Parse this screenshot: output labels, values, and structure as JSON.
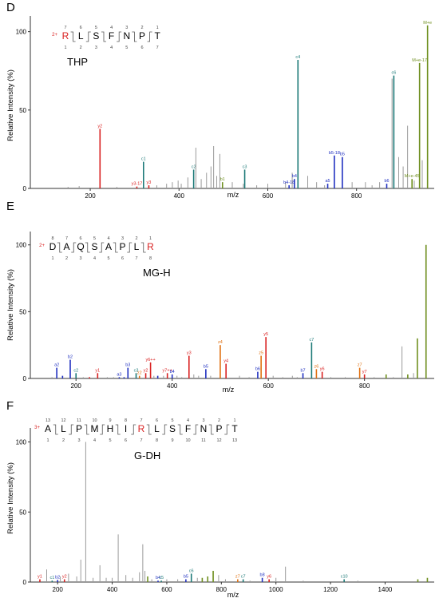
{
  "colors": {
    "gray": "#9a9a9a",
    "red": "#d92020",
    "teal": "#1d7a78",
    "blue": "#2030c0",
    "olive": "#6f8f1f",
    "orange": "#e07010",
    "axis": "#333333"
  },
  "panels": [
    {
      "letter": "D",
      "charge": "2+",
      "residues": [
        "R",
        "L",
        "S",
        "F",
        "N",
        "P",
        "T"
      ],
      "residue_colors": [
        "red",
        "black",
        "black",
        "black",
        "black",
        "black",
        "black"
      ],
      "top_numbers": [
        "7",
        "6",
        "5",
        "4",
        "3",
        "2",
        "1"
      ],
      "bottom_numbers": [
        "1",
        "2",
        "3",
        "4",
        "5",
        "6",
        "7"
      ],
      "modification": "THP",
      "ylabel": "Relative Intensity (%)",
      "xlabel": "m/z"
    },
    {
      "letter": "E",
      "charge": "2+",
      "residues": [
        "D",
        "A",
        "Q",
        "S",
        "A",
        "P",
        "L",
        "R"
      ],
      "residue_colors": [
        "black",
        "black",
        "black",
        "black",
        "black",
        "black",
        "black",
        "red"
      ],
      "top_numbers": [
        "8",
        "7",
        "6",
        "5",
        "4",
        "3",
        "2",
        "1"
      ],
      "bottom_numbers": [
        "1",
        "2",
        "3",
        "4",
        "5",
        "6",
        "7",
        "8"
      ],
      "modification": "MG-H",
      "ylabel": "Relative Intensity (%)",
      "xlabel": "m/z"
    },
    {
      "letter": "F",
      "charge": "3+",
      "residues": [
        "A",
        "L",
        "P",
        "M",
        "H",
        "I",
        "R",
        "L",
        "S",
        "F",
        "N",
        "P",
        "T"
      ],
      "residue_colors": [
        "black",
        "black",
        "black",
        "black",
        "black",
        "black",
        "red",
        "black",
        "black",
        "black",
        "black",
        "black",
        "black"
      ],
      "top_numbers": [
        "13",
        "12",
        "11",
        "10",
        "9",
        "8",
        "7",
        "6",
        "5",
        "4",
        "3",
        "2",
        "1"
      ],
      "bottom_numbers": [
        "1",
        "2",
        "3",
        "4",
        "5",
        "6",
        "7",
        "8",
        "9",
        "10",
        "11",
        "12",
        "13"
      ],
      "modification": "G-DH",
      "ylabel": "Relative Intensity (%)",
      "xlabel": "m/z"
    }
  ],
  "chart_data": [
    {
      "type": "bar",
      "xlabel": "m/z",
      "ylabel": "Relative Intensity (%)",
      "xlim": [
        65,
        975
      ],
      "ylim": [
        0,
        110
      ],
      "xticks": [
        200,
        400,
        600,
        800
      ],
      "yticks": [
        0,
        50,
        100
      ],
      "peaks": [
        {
          "mz": 150,
          "int": 1,
          "c": "gray"
        },
        {
          "mz": 175,
          "int": 1.5,
          "c": "gray"
        },
        {
          "mz": 222,
          "int": 38,
          "c": "red",
          "label": "y2"
        },
        {
          "mz": 260,
          "int": 1,
          "c": "gray"
        },
        {
          "mz": 305,
          "int": 1.2,
          "c": "red",
          "label": "y3-17"
        },
        {
          "mz": 320,
          "int": 17,
          "c": "teal",
          "label": "c1"
        },
        {
          "mz": 332,
          "int": 2,
          "c": "red",
          "label": "y3"
        },
        {
          "mz": 350,
          "int": 2,
          "c": "gray"
        },
        {
          "mz": 372,
          "int": 3,
          "c": "gray"
        },
        {
          "mz": 385,
          "int": 4,
          "c": "gray"
        },
        {
          "mz": 398,
          "int": 5,
          "c": "gray"
        },
        {
          "mz": 405,
          "int": 3,
          "c": "gray"
        },
        {
          "mz": 420,
          "int": 7,
          "c": "gray"
        },
        {
          "mz": 433,
          "int": 12,
          "c": "teal",
          "label": "c2"
        },
        {
          "mz": 438,
          "int": 26,
          "c": "gray"
        },
        {
          "mz": 450,
          "int": 6,
          "c": "gray"
        },
        {
          "mz": 462,
          "int": 10,
          "c": "gray"
        },
        {
          "mz": 472,
          "int": 14,
          "c": "gray"
        },
        {
          "mz": 478,
          "int": 27,
          "c": "gray"
        },
        {
          "mz": 485,
          "int": 8,
          "c": "gray"
        },
        {
          "mz": 492,
          "int": 22,
          "c": "gray"
        },
        {
          "mz": 498,
          "int": 4,
          "c": "olive",
          "label": "b1"
        },
        {
          "mz": 520,
          "int": 4,
          "c": "gray"
        },
        {
          "mz": 545,
          "int": 3,
          "c": "gray"
        },
        {
          "mz": 548,
          "int": 12,
          "c": "teal",
          "label": "c3"
        },
        {
          "mz": 575,
          "int": 2,
          "c": "gray"
        },
        {
          "mz": 600,
          "int": 3,
          "c": "gray"
        },
        {
          "mz": 640,
          "int": 4,
          "c": "gray"
        },
        {
          "mz": 648,
          "int": 2,
          "c": "blue",
          "label": "b4-18"
        },
        {
          "mz": 655,
          "int": 10,
          "c": "gray"
        },
        {
          "mz": 660,
          "int": 6,
          "c": "blue",
          "label": "b4"
        },
        {
          "mz": 668,
          "int": 82,
          "c": "teal",
          "label": "c4"
        },
        {
          "mz": 690,
          "int": 8,
          "c": "gray"
        },
        {
          "mz": 710,
          "int": 4,
          "c": "gray"
        },
        {
          "mz": 728,
          "int": 2,
          "c": "gray"
        },
        {
          "mz": 735,
          "int": 3,
          "c": "blue",
          "label": "a5"
        },
        {
          "mz": 750,
          "int": 21,
          "c": "blue",
          "label": "b5-18"
        },
        {
          "mz": 768,
          "int": 20,
          "c": "blue",
          "label": "b5"
        },
        {
          "mz": 790,
          "int": 4,
          "c": "gray"
        },
        {
          "mz": 820,
          "int": 4,
          "c": "gray"
        },
        {
          "mz": 835,
          "int": 2,
          "c": "gray"
        },
        {
          "mz": 852,
          "int": 4,
          "c": "gray"
        },
        {
          "mz": 868,
          "int": 3,
          "c": "blue",
          "label": "b6"
        },
        {
          "mz": 880,
          "int": 70,
          "c": "gray"
        },
        {
          "mz": 884,
          "int": 72,
          "c": "teal",
          "label": "c6"
        },
        {
          "mz": 895,
          "int": 20,
          "c": "gray"
        },
        {
          "mz": 905,
          "int": 14,
          "c": "gray"
        },
        {
          "mz": 915,
          "int": 40,
          "c": "gray"
        },
        {
          "mz": 925,
          "int": 6,
          "c": "olive",
          "label": "M+e-45"
        },
        {
          "mz": 930,
          "int": 5,
          "c": "gray"
        },
        {
          "mz": 942,
          "int": 80,
          "c": "olive",
          "label": "M+e-17"
        },
        {
          "mz": 948,
          "int": 18,
          "c": "gray"
        },
        {
          "mz": 960,
          "int": 104,
          "c": "olive",
          "label": "M+e"
        }
      ]
    },
    {
      "type": "bar",
      "xlabel": "m/z",
      "ylabel": "Relative Intensity (%)",
      "xlim": [
        105,
        945
      ],
      "ylim": [
        0,
        110
      ],
      "xticks": [
        200,
        400,
        600,
        800
      ],
      "yticks": [
        0,
        50,
        100
      ],
      "peaks": [
        {
          "mz": 150,
          "int": 1,
          "c": "gray"
        },
        {
          "mz": 160,
          "int": 8,
          "c": "blue",
          "label": "a2"
        },
        {
          "mz": 172,
          "int": 2,
          "c": "blue"
        },
        {
          "mz": 188,
          "int": 14,
          "c": "blue",
          "label": "b2"
        },
        {
          "mz": 200,
          "int": 4,
          "c": "teal",
          "label": "c2"
        },
        {
          "mz": 215,
          "int": 1,
          "c": "gray"
        },
        {
          "mz": 228,
          "int": 1,
          "c": "red"
        },
        {
          "mz": 245,
          "int": 4,
          "c": "red",
          "label": "y1"
        },
        {
          "mz": 265,
          "int": 1,
          "c": "gray"
        },
        {
          "mz": 278,
          "int": 1,
          "c": "gray"
        },
        {
          "mz": 290,
          "int": 1,
          "c": "blue",
          "label": "a3"
        },
        {
          "mz": 300,
          "int": 1,
          "c": "blue"
        },
        {
          "mz": 308,
          "int": 8,
          "c": "blue",
          "label": "b3"
        },
        {
          "mz": 325,
          "int": 4,
          "c": "teal",
          "label": "c3"
        },
        {
          "mz": 332,
          "int": 2,
          "c": "orange",
          "label": "z2"
        },
        {
          "mz": 345,
          "int": 4,
          "c": "red",
          "label": "y2"
        },
        {
          "mz": 355,
          "int": 12,
          "c": "red",
          "label": "y6++"
        },
        {
          "mz": 362,
          "int": 2,
          "c": "gray"
        },
        {
          "mz": 370,
          "int": 2,
          "c": "blue"
        },
        {
          "mz": 382,
          "int": 2,
          "c": "gray"
        },
        {
          "mz": 390,
          "int": 4,
          "c": "red",
          "label": "y7++"
        },
        {
          "mz": 400,
          "int": 3,
          "c": "blue",
          "label": "b4"
        },
        {
          "mz": 410,
          "int": 2,
          "c": "gray"
        },
        {
          "mz": 420,
          "int": 1,
          "c": "gray"
        },
        {
          "mz": 435,
          "int": 17,
          "c": "red",
          "label": "y3"
        },
        {
          "mz": 445,
          "int": 3,
          "c": "gray"
        },
        {
          "mz": 455,
          "int": 2,
          "c": "gray"
        },
        {
          "mz": 470,
          "int": 7,
          "c": "blue",
          "label": "b5"
        },
        {
          "mz": 480,
          "int": 2,
          "c": "gray"
        },
        {
          "mz": 500,
          "int": 25,
          "c": "orange",
          "label": "z4"
        },
        {
          "mz": 512,
          "int": 11,
          "c": "red",
          "label": "y4"
        },
        {
          "mz": 540,
          "int": 2,
          "c": "gray"
        },
        {
          "mz": 560,
          "int": 1,
          "c": "gray"
        },
        {
          "mz": 578,
          "int": 5,
          "c": "blue",
          "label": "b6"
        },
        {
          "mz": 585,
          "int": 17,
          "c": "orange",
          "label": "z5"
        },
        {
          "mz": 595,
          "int": 31,
          "c": "red",
          "label": "y5"
        },
        {
          "mz": 610,
          "int": 2,
          "c": "gray"
        },
        {
          "mz": 630,
          "int": 1,
          "c": "gray"
        },
        {
          "mz": 650,
          "int": 2,
          "c": "gray"
        },
        {
          "mz": 660,
          "int": 1,
          "c": "gray"
        },
        {
          "mz": 672,
          "int": 4,
          "c": "blue",
          "label": "b7"
        },
        {
          "mz": 690,
          "int": 27,
          "c": "teal",
          "label": "c7"
        },
        {
          "mz": 700,
          "int": 7,
          "c": "orange",
          "label": "z6"
        },
        {
          "mz": 712,
          "int": 5,
          "c": "red",
          "label": "y6"
        },
        {
          "mz": 730,
          "int": 1,
          "c": "gray"
        },
        {
          "mz": 760,
          "int": 1,
          "c": "gray"
        },
        {
          "mz": 790,
          "int": 8,
          "c": "orange",
          "label": "z7"
        },
        {
          "mz": 800,
          "int": 3,
          "c": "red",
          "label": "y7"
        },
        {
          "mz": 820,
          "int": 1,
          "c": "gray"
        },
        {
          "mz": 845,
          "int": 3,
          "c": "olive"
        },
        {
          "mz": 860,
          "int": 1,
          "c": "gray"
        },
        {
          "mz": 878,
          "int": 24,
          "c": "gray"
        },
        {
          "mz": 890,
          "int": 3,
          "c": "olive"
        },
        {
          "mz": 902,
          "int": 4,
          "c": "gray"
        },
        {
          "mz": 910,
          "int": 30,
          "c": "olive"
        },
        {
          "mz": 928,
          "int": 100,
          "c": "olive"
        }
      ]
    },
    {
      "type": "bar",
      "xlabel": "m/z",
      "ylabel": "Relative Intensity (%)",
      "xlim": [
        100,
        1580
      ],
      "ylim": [
        0,
        110
      ],
      "xticks": [
        200,
        400,
        600,
        800,
        1000,
        1200,
        1400
      ],
      "yticks": [
        0,
        50,
        100
      ],
      "peaks": [
        {
          "mz": 135,
          "int": 2,
          "c": "red",
          "label": "y1"
        },
        {
          "mz": 160,
          "int": 9,
          "c": "gray"
        },
        {
          "mz": 180,
          "int": 1,
          "c": "teal",
          "label": "c1"
        },
        {
          "mz": 200,
          "int": 1.5,
          "c": "blue",
          "label": "b2"
        },
        {
          "mz": 210,
          "int": 4,
          "c": "gray"
        },
        {
          "mz": 225,
          "int": 2,
          "c": "red",
          "label": "y2"
        },
        {
          "mz": 240,
          "int": 6,
          "c": "gray"
        },
        {
          "mz": 270,
          "int": 4,
          "c": "gray"
        },
        {
          "mz": 285,
          "int": 16,
          "c": "gray"
        },
        {
          "mz": 303,
          "int": 100,
          "c": "gray"
        },
        {
          "mz": 330,
          "int": 3,
          "c": "gray"
        },
        {
          "mz": 355,
          "int": 12,
          "c": "gray"
        },
        {
          "mz": 378,
          "int": 3,
          "c": "gray"
        },
        {
          "mz": 400,
          "int": 3,
          "c": "gray"
        },
        {
          "mz": 422,
          "int": 34,
          "c": "gray"
        },
        {
          "mz": 450,
          "int": 5,
          "c": "gray"
        },
        {
          "mz": 475,
          "int": 3,
          "c": "gray"
        },
        {
          "mz": 500,
          "int": 7,
          "c": "gray"
        },
        {
          "mz": 512,
          "int": 27,
          "c": "gray"
        },
        {
          "mz": 520,
          "int": 8,
          "c": "gray"
        },
        {
          "mz": 530,
          "int": 4,
          "c": "olive"
        },
        {
          "mz": 545,
          "int": 2,
          "c": "gray"
        },
        {
          "mz": 568,
          "int": 1,
          "c": "blue",
          "label": "b4"
        },
        {
          "mz": 580,
          "int": 1,
          "c": "teal",
          "label": "c5"
        },
        {
          "mz": 600,
          "int": 2,
          "c": "gray"
        },
        {
          "mz": 640,
          "int": 2,
          "c": "gray"
        },
        {
          "mz": 670,
          "int": 2,
          "c": "blue",
          "label": "b5"
        },
        {
          "mz": 690,
          "int": 6,
          "c": "teal",
          "label": "c6"
        },
        {
          "mz": 712,
          "int": 3,
          "c": "gray"
        },
        {
          "mz": 730,
          "int": 3,
          "c": "olive"
        },
        {
          "mz": 750,
          "int": 4,
          "c": "olive"
        },
        {
          "mz": 770,
          "int": 8,
          "c": "olive"
        },
        {
          "mz": 790,
          "int": 5,
          "c": "gray"
        },
        {
          "mz": 815,
          "int": 2,
          "c": "gray"
        },
        {
          "mz": 860,
          "int": 2,
          "c": "orange",
          "label": "z7"
        },
        {
          "mz": 880,
          "int": 2,
          "c": "teal",
          "label": "c7"
        },
        {
          "mz": 905,
          "int": 1,
          "c": "gray"
        },
        {
          "mz": 950,
          "int": 3,
          "c": "blue",
          "label": "b8"
        },
        {
          "mz": 975,
          "int": 2,
          "c": "red",
          "label": "y6"
        },
        {
          "mz": 1000,
          "int": 3,
          "c": "gray"
        },
        {
          "mz": 1035,
          "int": 11,
          "c": "gray"
        },
        {
          "mz": 1100,
          "int": 1,
          "c": "gray"
        },
        {
          "mz": 1250,
          "int": 2,
          "c": "teal",
          "label": "c10"
        },
        {
          "mz": 1300,
          "int": 1,
          "c": "gray"
        },
        {
          "mz": 1520,
          "int": 2,
          "c": "olive"
        },
        {
          "mz": 1555,
          "int": 3,
          "c": "olive"
        }
      ]
    }
  ]
}
